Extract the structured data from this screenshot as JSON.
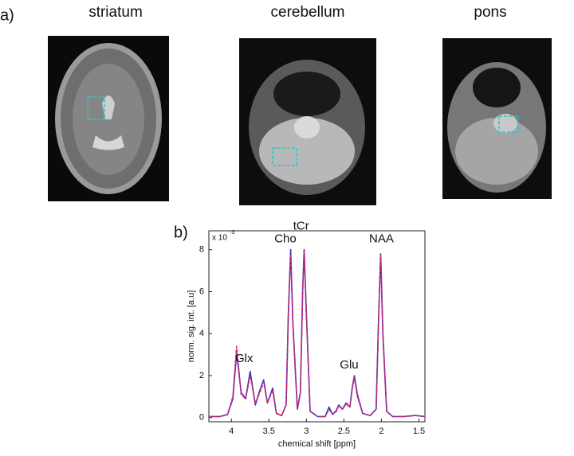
{
  "panel_a": {
    "label": "a)",
    "images": [
      {
        "title": "striatum"
      },
      {
        "title": "cerebellum"
      },
      {
        "title": "pons"
      }
    ]
  },
  "panel_b": {
    "label": "b)"
  },
  "chart_data": {
    "type": "line",
    "y_label": "norm. sig. int. [a.u]",
    "x_label": "chemical shift [ppm]",
    "y_multiplier": {
      "base": "x 10",
      "exponent": "-3"
    },
    "xlim": [
      4.3,
      1.42
    ],
    "ylim": [
      -0.2,
      8.9
    ],
    "xticks": [
      4,
      3.5,
      3,
      2.5,
      2,
      1.5
    ],
    "yticks": [
      0,
      2,
      4,
      6,
      8
    ],
    "x": [
      4.3,
      4.15,
      4.05,
      3.98,
      3.93,
      3.87,
      3.81,
      3.75,
      3.68,
      3.63,
      3.57,
      3.52,
      3.45,
      3.4,
      3.33,
      3.27,
      3.24,
      3.21,
      3.18,
      3.12,
      3.08,
      3.05,
      3.03,
      3.0,
      2.95,
      2.85,
      2.75,
      2.7,
      2.65,
      2.6,
      2.57,
      2.52,
      2.47,
      2.42,
      2.39,
      2.36,
      2.32,
      2.25,
      2.15,
      2.07,
      2.04,
      2.01,
      1.98,
      1.93,
      1.85,
      1.7,
      1.55,
      1.42
    ],
    "series": [
      {
        "color": "#2636d8",
        "dashed": false,
        "values": [
          0.05,
          0.05,
          0.15,
          0.9,
          3.1,
          1.2,
          0.9,
          2.2,
          0.6,
          1.2,
          1.8,
          0.7,
          1.4,
          0.2,
          0.1,
          0.6,
          5.0,
          8.0,
          4.5,
          0.4,
          1.2,
          6.0,
          8.0,
          5.0,
          0.3,
          0.05,
          0.05,
          0.5,
          0.15,
          0.35,
          0.6,
          0.4,
          0.7,
          0.5,
          1.4,
          2.0,
          1.1,
          0.2,
          0.1,
          0.4,
          4.5,
          7.8,
          4.0,
          0.3,
          0.05,
          0.05,
          0.1,
          0.05
        ]
      },
      {
        "color": "#e2245a",
        "dashed": true,
        "values": [
          0.05,
          0.05,
          0.15,
          1.0,
          3.4,
          1.1,
          0.9,
          2.0,
          0.7,
          1.1,
          1.7,
          0.7,
          1.3,
          0.2,
          0.1,
          0.6,
          4.8,
          7.8,
          4.4,
          0.4,
          1.2,
          5.9,
          8.0,
          4.9,
          0.3,
          0.05,
          0.05,
          0.4,
          0.15,
          0.3,
          0.55,
          0.4,
          0.65,
          0.5,
          1.35,
          1.9,
          1.0,
          0.2,
          0.1,
          0.4,
          4.4,
          7.8,
          3.9,
          0.3,
          0.05,
          0.05,
          0.1,
          0.05
        ]
      }
    ],
    "annotations": [
      {
        "text": "Glx",
        "x": 3.83,
        "y": 2.8
      },
      {
        "text": "Cho",
        "x": 3.28,
        "y": 8.5
      },
      {
        "text": "tCr",
        "x": 3.07,
        "y": 9.1
      },
      {
        "text": "Glu",
        "x": 2.43,
        "y": 2.5
      },
      {
        "text": "NAA",
        "x": 2.0,
        "y": 8.5
      }
    ]
  }
}
